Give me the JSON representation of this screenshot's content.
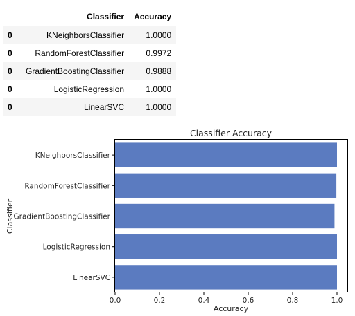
{
  "table": {
    "headers": [
      "",
      "Classifier",
      "Accuracy"
    ],
    "rows": [
      {
        "index": "0",
        "classifier": "KNeighborsClassifier",
        "accuracy": "1.0000"
      },
      {
        "index": "0",
        "classifier": "RandomForestClassifier",
        "accuracy": "0.9972"
      },
      {
        "index": "0",
        "classifier": "GradientBoostingClassifier",
        "accuracy": "0.9888"
      },
      {
        "index": "0",
        "classifier": "LogisticRegression",
        "accuracy": "1.0000"
      },
      {
        "index": "0",
        "classifier": "LinearSVC",
        "accuracy": "1.0000"
      }
    ]
  },
  "chart_data": {
    "type": "bar",
    "orientation": "horizontal",
    "title": "Classifier Accuracy",
    "xlabel": "Accuracy",
    "ylabel": "Classifier",
    "categories": [
      "KNeighborsClassifier",
      "RandomForestClassifier",
      "GradientBoostingClassifier",
      "LogisticRegression",
      "LinearSVC"
    ],
    "values": [
      1.0,
      0.9972,
      0.9888,
      1.0,
      1.0
    ],
    "xlim": [
      0,
      1.05
    ],
    "xticks": [
      "0.0",
      "0.2",
      "0.4",
      "0.6",
      "0.8",
      "1.0"
    ],
    "grid": false,
    "bar_color": "#5b7bc0"
  }
}
